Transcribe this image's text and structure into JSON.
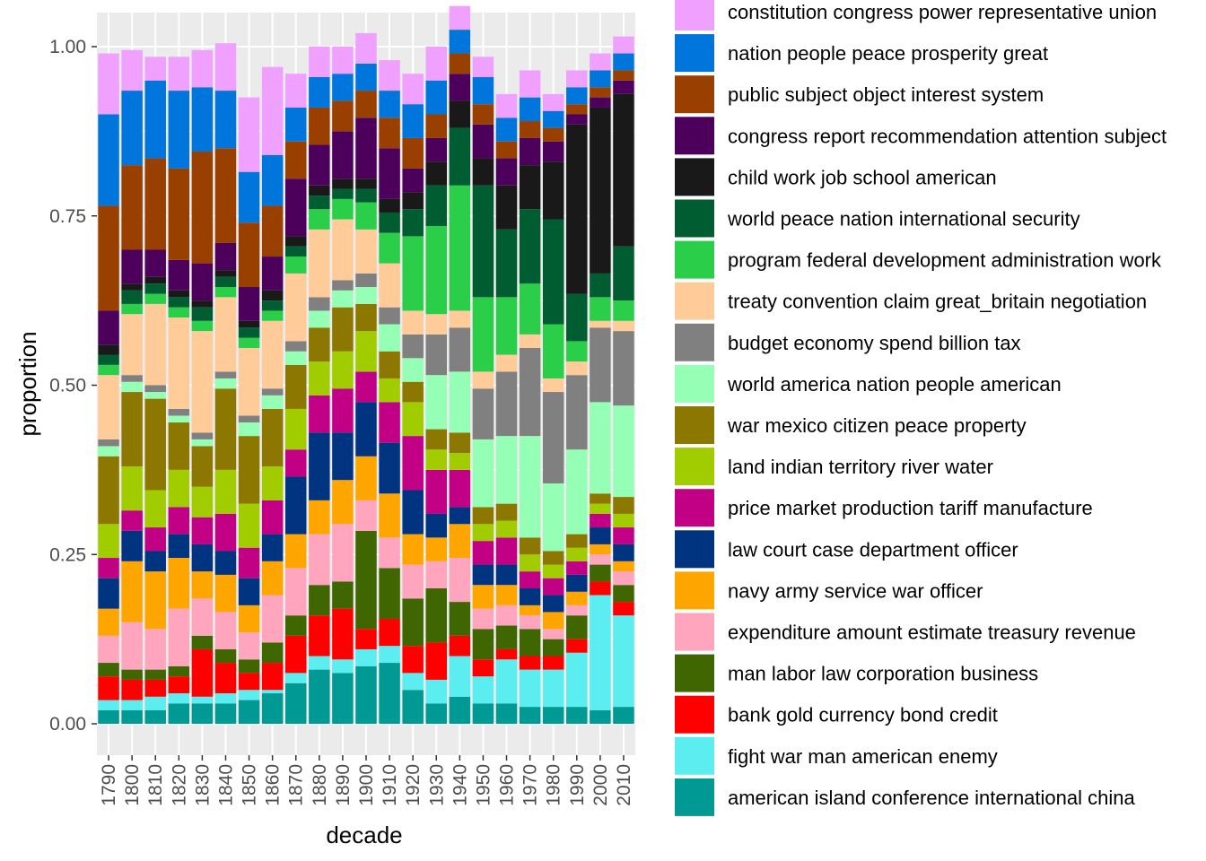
{
  "chart_data": {
    "type": "bar",
    "stacked": true,
    "xlabel": "decade",
    "ylabel": "proportion",
    "ylim": [
      0,
      1.0
    ],
    "y_ticks": [
      0.0,
      0.25,
      0.5,
      0.75,
      1.0
    ],
    "y_tick_labels": [
      "0.00",
      "0.25",
      "0.50",
      "0.75",
      "1.00"
    ],
    "categories": [
      "1790",
      "1800",
      "1810",
      "1820",
      "1830",
      "1840",
      "1850",
      "1860",
      "1870",
      "1880",
      "1890",
      "1900",
      "1910",
      "1920",
      "1930",
      "1940",
      "1950",
      "1960",
      "1970",
      "1980",
      "1990",
      "2000",
      "2010"
    ],
    "grid": true,
    "legend_position": "right",
    "series": [
      {
        "name": "american island conference international china",
        "color": "#009993",
        "values": [
          0.02,
          0.02,
          0.02,
          0.03,
          0.03,
          0.03,
          0.035,
          0.045,
          0.06,
          0.08,
          0.075,
          0.085,
          0.09,
          0.05,
          0.03,
          0.04,
          0.03,
          0.03,
          0.025,
          0.025,
          0.025,
          0.02,
          0.025
        ]
      },
      {
        "name": "fight war man american enemy",
        "color": "#5BEDF0",
        "values": [
          0.015,
          0.015,
          0.02,
          0.015,
          0.01,
          0.015,
          0.015,
          0.005,
          0.015,
          0.02,
          0.02,
          0.025,
          0.025,
          0.025,
          0.035,
          0.06,
          0.04,
          0.065,
          0.055,
          0.055,
          0.08,
          0.17,
          0.135
        ]
      },
      {
        "name": "bank gold currency bond credit",
        "color": "#FF0000",
        "values": [
          0.035,
          0.03,
          0.025,
          0.025,
          0.07,
          0.045,
          0.025,
          0.04,
          0.055,
          0.06,
          0.075,
          0.03,
          0.04,
          0.04,
          0.055,
          0.03,
          0.025,
          0.015,
          0.02,
          0.02,
          0.02,
          0.02,
          0.02
        ]
      },
      {
        "name": "man labor law corporation business",
        "color": "#3F6600",
        "values": [
          0.02,
          0.015,
          0.015,
          0.015,
          0.02,
          0.02,
          0.02,
          0.03,
          0.03,
          0.045,
          0.04,
          0.145,
          0.075,
          0.07,
          0.08,
          0.05,
          0.045,
          0.035,
          0.04,
          0.025,
          0.035,
          0.025,
          0.025
        ]
      },
      {
        "name": "expenditure amount estimate treasury revenue",
        "color": "#FFA6BE",
        "values": [
          0.04,
          0.07,
          0.06,
          0.085,
          0.055,
          0.055,
          0.04,
          0.07,
          0.07,
          0.075,
          0.085,
          0.045,
          0.045,
          0.05,
          0.04,
          0.065,
          0.03,
          0.03,
          0.02,
          0.015,
          0.015,
          0.015,
          0.02
        ]
      },
      {
        "name": "navy army service war officer",
        "color": "#FFA500",
        "values": [
          0.04,
          0.09,
          0.085,
          0.075,
          0.04,
          0.055,
          0.04,
          0.05,
          0.05,
          0.05,
          0.065,
          0.065,
          0.065,
          0.045,
          0.035,
          0.05,
          0.035,
          0.03,
          0.015,
          0.025,
          0.02,
          0.015,
          0.015
        ]
      },
      {
        "name": "law court case department officer",
        "color": "#003380",
        "values": [
          0.045,
          0.045,
          0.03,
          0.035,
          0.04,
          0.035,
          0.04,
          0.04,
          0.085,
          0.1,
          0.07,
          0.08,
          0.075,
          0.065,
          0.035,
          0.025,
          0.03,
          0.03,
          0.025,
          0.025,
          0.025,
          0.025,
          0.025
        ]
      },
      {
        "name": "price market production tariff manufacture",
        "color": "#C20086",
        "values": [
          0.03,
          0.03,
          0.035,
          0.04,
          0.04,
          0.055,
          0.045,
          0.05,
          0.04,
          0.055,
          0.065,
          0.045,
          0.06,
          0.08,
          0.065,
          0.055,
          0.035,
          0.04,
          0.025,
          0.025,
          0.02,
          0.02,
          0.025
        ]
      },
      {
        "name": "land indian territory river water",
        "color": "#A0CC00",
        "values": [
          0.05,
          0.065,
          0.055,
          0.055,
          0.045,
          0.065,
          0.065,
          0.05,
          0.06,
          0.05,
          0.055,
          0.06,
          0.035,
          0.05,
          0.03,
          0.025,
          0.025,
          0.025,
          0.025,
          0.02,
          0.02,
          0.015,
          0.02
        ]
      },
      {
        "name": "war mexico citizen peace property",
        "color": "#8C7700",
        "values": [
          0.1,
          0.11,
          0.135,
          0.07,
          0.06,
          0.12,
          0.1,
          0.085,
          0.065,
          0.05,
          0.065,
          0.04,
          0.04,
          0.03,
          0.03,
          0.03,
          0.025,
          0.025,
          0.025,
          0.02,
          0.02,
          0.015,
          0.025
        ]
      },
      {
        "name": "world america nation people american",
        "color": "#94FFB5",
        "values": [
          0.015,
          0.015,
          0.01,
          0.01,
          0.01,
          0.015,
          0.02,
          0.02,
          0.02,
          0.025,
          0.025,
          0.025,
          0.04,
          0.035,
          0.08,
          0.09,
          0.1,
          0.1,
          0.15,
          0.1,
          0.125,
          0.135,
          0.135
        ]
      },
      {
        "name": "budget economy spend billion tax",
        "color": "#808080",
        "values": [
          0.01,
          0.01,
          0.01,
          0.01,
          0.01,
          0.01,
          0.01,
          0.01,
          0.015,
          0.02,
          0.015,
          0.02,
          0.025,
          0.035,
          0.06,
          0.065,
          0.075,
          0.095,
          0.13,
          0.135,
          0.11,
          0.11,
          0.11
        ]
      },
      {
        "name": "treaty convention claim great_britain negotiation",
        "color": "#FFCC99",
        "values": [
          0.095,
          0.09,
          0.12,
          0.135,
          0.15,
          0.11,
          0.1,
          0.1,
          0.1,
          0.1,
          0.09,
          0.065,
          0.065,
          0.035,
          0.03,
          0.025,
          0.025,
          0.025,
          0.02,
          0.02,
          0.02,
          0.01,
          0.015
        ]
      },
      {
        "name": "program federal development administration work",
        "color": "#2BCE48",
        "values": [
          0.015,
          0.015,
          0.015,
          0.015,
          0.015,
          0.015,
          0.015,
          0.015,
          0.025,
          0.03,
          0.03,
          0.04,
          0.045,
          0.11,
          0.13,
          0.185,
          0.11,
          0.085,
          0.075,
          0.08,
          0.03,
          0.035,
          0.03
        ]
      },
      {
        "name": "world peace nation international security",
        "color": "#005C31",
        "values": [
          0.015,
          0.02,
          0.015,
          0.015,
          0.02,
          0.015,
          0.015,
          0.015,
          0.015,
          0.02,
          0.015,
          0.02,
          0.03,
          0.04,
          0.06,
          0.085,
          0.165,
          0.1,
          0.11,
          0.155,
          0.07,
          0.035,
          0.08
        ]
      },
      {
        "name": "child work job school american",
        "color": "#191919",
        "values": [
          0.015,
          0.01,
          0.01,
          0.01,
          0.01,
          0.01,
          0.01,
          0.015,
          0.015,
          0.015,
          0.015,
          0.015,
          0.02,
          0.025,
          0.035,
          0.04,
          0.04,
          0.065,
          0.065,
          0.085,
          0.25,
          0.245,
          0.225
        ]
      },
      {
        "name": "congress report recommendation attention subject",
        "color": "#4C005C",
        "values": [
          0.05,
          0.05,
          0.04,
          0.045,
          0.055,
          0.04,
          0.05,
          0.05,
          0.085,
          0.06,
          0.07,
          0.09,
          0.075,
          0.035,
          0.035,
          0.04,
          0.05,
          0.04,
          0.04,
          0.03,
          0.015,
          0.015,
          0.02
        ]
      },
      {
        "name": "public subject object interest system",
        "color": "#993F00",
        "values": [
          0.155,
          0.125,
          0.135,
          0.135,
          0.165,
          0.14,
          0.095,
          0.075,
          0.055,
          0.055,
          0.045,
          0.04,
          0.045,
          0.045,
          0.035,
          0.03,
          0.03,
          0.025,
          0.025,
          0.02,
          0.015,
          0.015,
          0.015
        ]
      },
      {
        "name": "nation people peace prosperity great",
        "color": "#0075DC",
        "values": [
          0.135,
          0.11,
          0.115,
          0.115,
          0.095,
          0.085,
          0.075,
          0.075,
          0.05,
          0.045,
          0.04,
          0.04,
          0.04,
          0.05,
          0.05,
          0.035,
          0.04,
          0.035,
          0.035,
          0.025,
          0.025,
          0.025,
          0.025
        ]
      },
      {
        "name": "constitution congress power representative union",
        "color": "#F0A0FF",
        "values": [
          0.09,
          0.06,
          0.035,
          0.05,
          0.055,
          0.07,
          0.11,
          0.13,
          0.05,
          0.045,
          0.04,
          0.045,
          0.045,
          0.045,
          0.05,
          0.035,
          0.03,
          0.035,
          0.04,
          0.025,
          0.025,
          0.025,
          0.025
        ]
      }
    ]
  }
}
